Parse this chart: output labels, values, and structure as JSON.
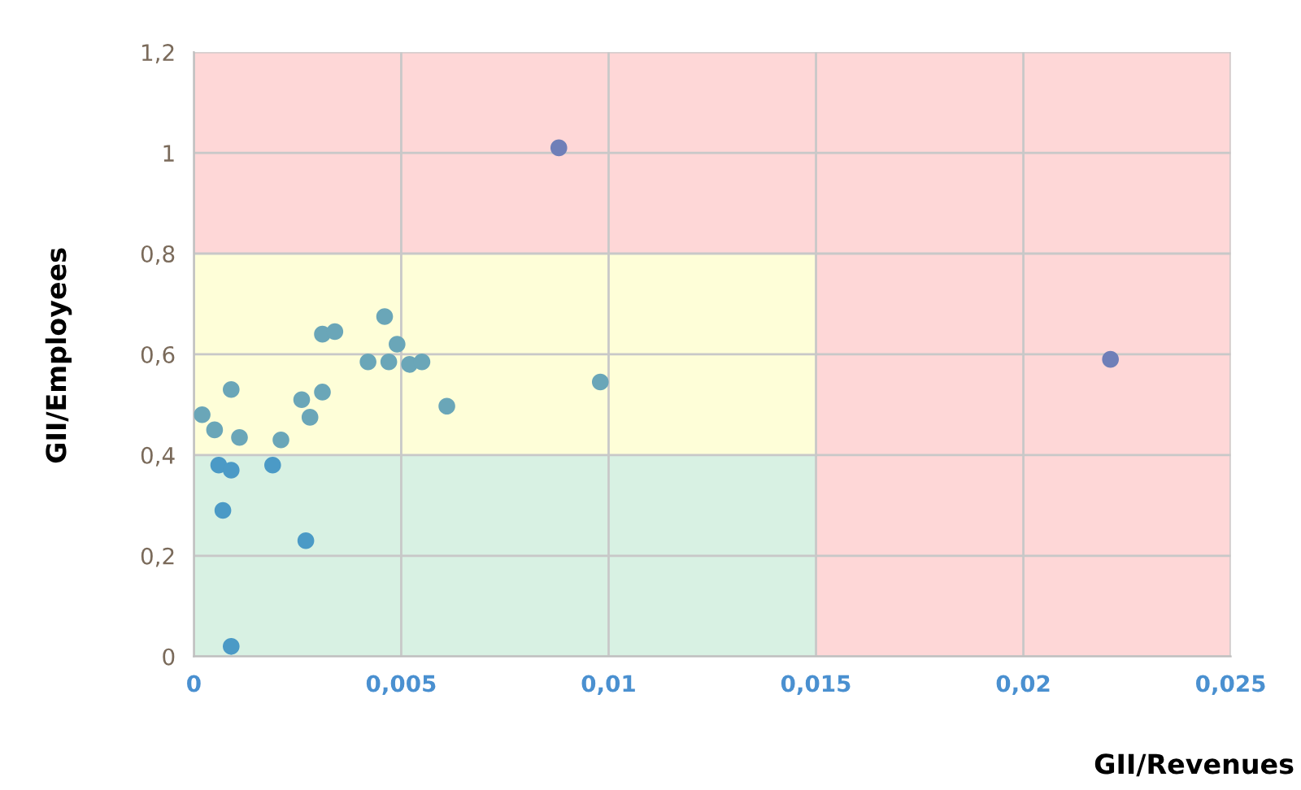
{
  "chart_data": {
    "type": "scatter",
    "xlabel": "GII/Revenues",
    "ylabel": "GII/Employees",
    "x": [
      0.0002,
      0.0005,
      0.0009,
      0.0011,
      0.0006,
      0.0009,
      0.0007,
      0.0009,
      0.0019,
      0.0021,
      0.0026,
      0.0028,
      0.0031,
      0.0027,
      0.0031,
      0.0034,
      0.0042,
      0.0046,
      0.0047,
      0.0049,
      0.0052,
      0.0055,
      0.0061,
      0.0098,
      0.0088,
      0.0221
    ],
    "values": [
      0.48,
      0.45,
      0.53,
      0.435,
      0.38,
      0.37,
      0.29,
      0.02,
      0.38,
      0.43,
      0.51,
      0.475,
      0.525,
      0.23,
      0.64,
      0.645,
      0.585,
      0.675,
      0.585,
      0.62,
      0.58,
      0.585,
      0.497,
      0.545,
      1.01,
      0.59
    ],
    "colors": [
      "#6aa6b8",
      "#6aa6b8",
      "#6aa6b8",
      "#6aa6b8",
      "#4b9ac6",
      "#4b9ac6",
      "#4b9ac6",
      "#4b9ac6",
      "#4b9ac6",
      "#6aa6b8",
      "#6aa6b8",
      "#6aa6b8",
      "#6aa6b8",
      "#4b9ac6",
      "#6aa6b8",
      "#6aa6b8",
      "#6aa6b8",
      "#6aa6b8",
      "#6aa6b8",
      "#6aa6b8",
      "#6aa6b8",
      "#6aa6b8",
      "#6aa6b8",
      "#6aa6b8",
      "#6f7fb8",
      "#6f7fb8"
    ],
    "marker": "circle",
    "xlim": [
      0,
      0.025
    ],
    "ylim": [
      0,
      1.2
    ],
    "xticks": [
      {
        "value": 0,
        "label": "0"
      },
      {
        "value": 0.005,
        "label": "0,005"
      },
      {
        "value": 0.01,
        "label": "0,01"
      },
      {
        "value": 0.015,
        "label": "0,015"
      },
      {
        "value": 0.02,
        "label": "0,02"
      },
      {
        "value": 0.025,
        "label": "0,025"
      }
    ],
    "yticks": [
      {
        "value": 0,
        "label": "0"
      },
      {
        "value": 0.2,
        "label": "0,2"
      },
      {
        "value": 0.4,
        "label": "0,4"
      },
      {
        "value": 0.6,
        "label": "0,6"
      },
      {
        "value": 0.8,
        "label": "0,8"
      },
      {
        "value": 1,
        "label": "1"
      },
      {
        "value": 1.2,
        "label": "1,2"
      }
    ],
    "bands": [
      {
        "axis": "y",
        "from": 0,
        "to": 0.4,
        "color": "#d8f1e3"
      },
      {
        "axis": "y",
        "from": 0.4,
        "to": 0.8,
        "color": "#fefed8"
      },
      {
        "axis": "x",
        "from": 0.015,
        "to": 0.025,
        "color": "#fed7d7"
      },
      {
        "axis": "y",
        "from": 0.8,
        "to": 1.2,
        "color": "#fed7d7"
      }
    ],
    "grid": true,
    "legend": false
  }
}
